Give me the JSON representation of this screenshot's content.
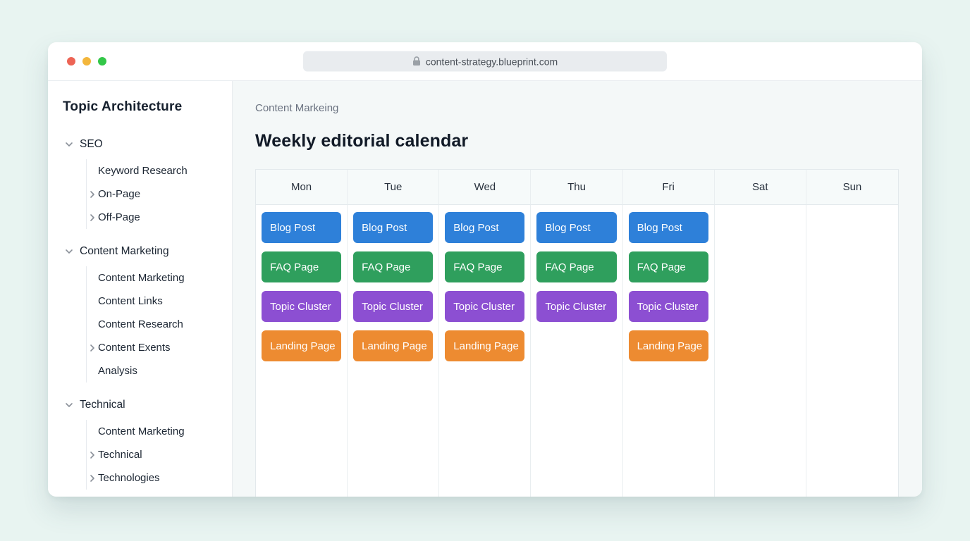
{
  "browser": {
    "url": "content-strategy.blueprint.com",
    "traffic_lights": [
      {
        "name": "close",
        "color": "#ed6455"
      },
      {
        "name": "minimize",
        "color": "#f3b63c"
      },
      {
        "name": "zoom",
        "color": "#33c748"
      }
    ],
    "lock_icon_color": "#9aa0a6"
  },
  "sidebar": {
    "title": "Topic Architecture",
    "groups": [
      {
        "label": "SEO",
        "expanded": true,
        "children": [
          {
            "label": "Keyword Research",
            "chevron": false
          },
          {
            "label": "On-Page",
            "chevron": true
          },
          {
            "label": "Off-Page",
            "chevron": true
          }
        ]
      },
      {
        "label": "Content Marketing",
        "expanded": true,
        "children": [
          {
            "label": "Content Marketing",
            "chevron": false
          },
          {
            "label": "Content Links",
            "chevron": false
          },
          {
            "label": "Content Research",
            "chevron": false
          },
          {
            "label": "Content Exents",
            "chevron": true
          },
          {
            "label": "Analysis",
            "chevron": false
          }
        ]
      },
      {
        "label": "Technical",
        "expanded": true,
        "children": [
          {
            "label": "Content Marketing",
            "chevron": false
          },
          {
            "label": "Technical",
            "chevron": true
          },
          {
            "label": "Technologies",
            "chevron": true
          }
        ]
      }
    ],
    "chevron_color": "#8a9099"
  },
  "main": {
    "breadcrumb": "Content Markeing",
    "title": "Weekly editorial calendar",
    "calendar": {
      "days": [
        "Mon",
        "Tue",
        "Wed",
        "Thu",
        "Fri",
        "Sat",
        "Sun"
      ],
      "card_types": {
        "blog": {
          "label": "Blog Post",
          "color": "#2e80d9"
        },
        "faq": {
          "label": "FAQ Page",
          "color": "#2f9f5d"
        },
        "topic": {
          "label": "Topic Cluster",
          "color": "#8c4fd2"
        },
        "landing": {
          "label": "Landing Page",
          "color": "#ed8b31"
        }
      },
      "schedule": [
        [
          "blog",
          "faq",
          "topic",
          "landing"
        ],
        [
          "blog",
          "faq",
          "topic",
          "landing"
        ],
        [
          "blog",
          "faq",
          "topic",
          "landing"
        ],
        [
          "blog",
          "faq",
          "topic"
        ],
        [
          "blog",
          "faq",
          "topic",
          "landing"
        ],
        [],
        []
      ]
    }
  }
}
